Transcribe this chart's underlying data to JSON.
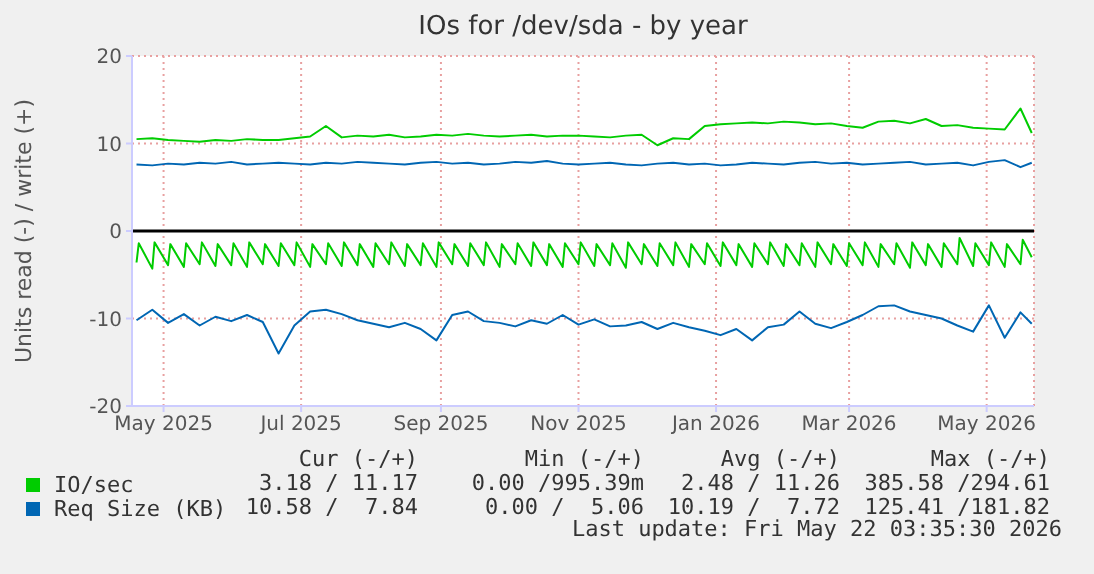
{
  "chart_data": {
    "type": "line",
    "title": "IOs for /dev/sda - by year",
    "ylabel": "Units read (-) / write (+)",
    "x": [
      "2025-04-19",
      "2025-04-26",
      "2025-05-03",
      "2025-05-10",
      "2025-05-17",
      "2025-05-24",
      "2025-05-31",
      "2025-06-07",
      "2025-06-14",
      "2025-06-21",
      "2025-06-28",
      "2025-07-05",
      "2025-07-12",
      "2025-07-19",
      "2025-07-26",
      "2025-08-02",
      "2025-08-09",
      "2025-08-16",
      "2025-08-23",
      "2025-08-30",
      "2025-09-06",
      "2025-09-13",
      "2025-09-20",
      "2025-09-27",
      "2025-10-04",
      "2025-10-11",
      "2025-10-18",
      "2025-10-25",
      "2025-11-01",
      "2025-11-08",
      "2025-11-15",
      "2025-11-22",
      "2025-11-29",
      "2025-12-06",
      "2025-12-13",
      "2025-12-20",
      "2025-12-27",
      "2026-01-03",
      "2026-01-10",
      "2026-01-17",
      "2026-01-24",
      "2026-01-31",
      "2026-02-07",
      "2026-02-14",
      "2026-02-21",
      "2026-02-28",
      "2026-03-07",
      "2026-03-14",
      "2026-03-21",
      "2026-03-28",
      "2026-04-04",
      "2026-04-11",
      "2026-04-18",
      "2026-04-25",
      "2026-05-02",
      "2026-05-09",
      "2026-05-16",
      "2026-05-21"
    ],
    "series": [
      {
        "name": "IO/sec",
        "color": "#00cc00",
        "values": [
          10.5,
          10.6,
          10.4,
          10.3,
          10.2,
          10.4,
          10.3,
          10.5,
          10.4,
          10.4,
          10.6,
          10.8,
          12.0,
          10.7,
          10.9,
          10.8,
          11.0,
          10.7,
          10.8,
          11.0,
          10.9,
          11.1,
          10.9,
          10.8,
          10.9,
          11.0,
          10.8,
          10.9,
          10.9,
          10.8,
          10.7,
          10.9,
          11.0,
          9.8,
          10.6,
          10.5,
          12.0,
          12.2,
          12.3,
          12.4,
          12.3,
          12.5,
          12.4,
          12.2,
          12.3,
          12.0,
          11.8,
          12.5,
          12.6,
          12.3,
          12.8,
          12.0,
          12.1,
          11.8,
          11.7,
          11.6,
          14.0,
          11.2
        ]
      },
      {
        "color": "#00cc00",
        "x": [
          "2025-04-19",
          "2025-04-20",
          "2025-04-26",
          "2025-04-27",
          "2025-05-03",
          "2025-05-04",
          "2025-05-10",
          "2025-05-11",
          "2025-05-17",
          "2025-05-18",
          "2025-05-24",
          "2025-05-25",
          "2025-05-31",
          "2025-06-01",
          "2025-06-07",
          "2025-06-08",
          "2025-06-14",
          "2025-06-15",
          "2025-06-21",
          "2025-06-22",
          "2025-06-28",
          "2025-06-29",
          "2025-07-05",
          "2025-07-06",
          "2025-07-12",
          "2025-07-13",
          "2025-07-19",
          "2025-07-20",
          "2025-07-26",
          "2025-07-27",
          "2025-08-02",
          "2025-08-03",
          "2025-08-09",
          "2025-08-10",
          "2025-08-16",
          "2025-08-17",
          "2025-08-23",
          "2025-08-24",
          "2025-08-30",
          "2025-08-31",
          "2025-09-06",
          "2025-09-07",
          "2025-09-13",
          "2025-09-14",
          "2025-09-20",
          "2025-09-21",
          "2025-09-27",
          "2025-09-28",
          "2025-10-04",
          "2025-10-05",
          "2025-10-11",
          "2025-10-12",
          "2025-10-18",
          "2025-10-19",
          "2025-10-25",
          "2025-10-26",
          "2025-11-01",
          "2025-11-02",
          "2025-11-08",
          "2025-11-09",
          "2025-11-15",
          "2025-11-16",
          "2025-11-22",
          "2025-11-23",
          "2025-11-29",
          "2025-11-30",
          "2025-12-06",
          "2025-12-07",
          "2025-12-13",
          "2025-12-14",
          "2025-12-20",
          "2025-12-21",
          "2025-12-27",
          "2025-12-28",
          "2026-01-03",
          "2026-01-04",
          "2026-01-10",
          "2026-01-11",
          "2026-01-17",
          "2026-01-18",
          "2026-01-24",
          "2026-01-25",
          "2026-01-31",
          "2026-02-01",
          "2026-02-07",
          "2026-02-08",
          "2026-02-14",
          "2026-02-15",
          "2026-02-21",
          "2026-02-22",
          "2026-02-28",
          "2026-03-01",
          "2026-03-07",
          "2026-03-08",
          "2026-03-14",
          "2026-03-15",
          "2026-03-21",
          "2026-03-22",
          "2026-03-28",
          "2026-03-29",
          "2026-04-04",
          "2026-04-05",
          "2026-04-11",
          "2026-04-12",
          "2026-04-18",
          "2026-04-19",
          "2026-04-25",
          "2026-04-26",
          "2026-05-02",
          "2026-05-03",
          "2026-05-09",
          "2026-05-10",
          "2026-05-16",
          "2026-05-17",
          "2026-05-21"
        ],
        "values": [
          -3.6,
          -1.4,
          -4.3,
          -1.3,
          -3.9,
          -1.5,
          -4.1,
          -1.4,
          -3.8,
          -1.3,
          -4.0,
          -1.5,
          -3.9,
          -1.4,
          -4.1,
          -1.3,
          -3.8,
          -1.5,
          -4.0,
          -1.4,
          -3.9,
          -1.3,
          -4.1,
          -1.5,
          -3.8,
          -1.4,
          -4.0,
          -1.3,
          -3.9,
          -1.5,
          -4.1,
          -1.4,
          -3.8,
          -1.3,
          -4.0,
          -1.5,
          -3.9,
          -1.4,
          -4.1,
          -1.3,
          -3.8,
          -1.5,
          -4.0,
          -1.4,
          -3.9,
          -1.3,
          -4.1,
          -1.5,
          -3.8,
          -1.4,
          -4.0,
          -1.3,
          -3.9,
          -1.5,
          -4.1,
          -1.4,
          -3.8,
          -1.3,
          -4.0,
          -1.5,
          -3.9,
          -1.4,
          -4.2,
          -1.3,
          -3.8,
          -1.5,
          -4.0,
          -1.4,
          -3.9,
          -1.3,
          -4.1,
          -1.5,
          -3.8,
          -1.4,
          -4.0,
          -1.3,
          -3.9,
          -1.5,
          -4.1,
          -1.4,
          -3.8,
          -1.3,
          -4.0,
          -1.5,
          -3.9,
          -1.4,
          -4.1,
          -1.3,
          -3.8,
          -1.5,
          -4.0,
          -1.4,
          -3.9,
          -1.3,
          -4.1,
          -1.5,
          -3.8,
          -1.4,
          -4.2,
          -1.3,
          -3.9,
          -1.5,
          -4.1,
          -1.4,
          -3.8,
          -0.8,
          -4.0,
          -1.4,
          -3.9,
          -1.3,
          -4.1,
          -1.5,
          -3.8,
          -1.0,
          -3.0
        ]
      },
      {
        "name": "Req Size (KB)",
        "color": "#0066b3",
        "values": [
          7.6,
          7.5,
          7.7,
          7.6,
          7.8,
          7.7,
          7.9,
          7.6,
          7.7,
          7.8,
          7.7,
          7.6,
          7.8,
          7.7,
          7.9,
          7.8,
          7.7,
          7.6,
          7.8,
          7.9,
          7.7,
          7.8,
          7.6,
          7.7,
          7.9,
          7.8,
          8.0,
          7.7,
          7.6,
          7.7,
          7.8,
          7.6,
          7.5,
          7.7,
          7.8,
          7.6,
          7.7,
          7.5,
          7.6,
          7.8,
          7.7,
          7.6,
          7.8,
          7.9,
          7.7,
          7.8,
          7.6,
          7.7,
          7.8,
          7.9,
          7.6,
          7.7,
          7.8,
          7.5,
          7.9,
          8.1,
          7.3,
          7.8
        ]
      },
      {
        "color": "#0066b3",
        "values": [
          -10.2,
          -9.0,
          -10.5,
          -9.5,
          -10.8,
          -9.8,
          -10.3,
          -9.6,
          -10.4,
          -14.0,
          -10.8,
          -9.2,
          -9.0,
          -9.5,
          -10.2,
          -10.6,
          -11.0,
          -10.5,
          -11.2,
          -12.5,
          -9.6,
          -9.2,
          -10.3,
          -10.5,
          -10.9,
          -10.2,
          -10.6,
          -9.6,
          -10.7,
          -10.1,
          -10.9,
          -10.8,
          -10.4,
          -11.2,
          -10.5,
          -11.0,
          -11.4,
          -11.9,
          -11.2,
          -12.5,
          -11.0,
          -10.7,
          -9.2,
          -10.6,
          -11.1,
          -10.4,
          -9.6,
          -8.6,
          -8.5,
          -9.2,
          -9.6,
          -10.0,
          -10.8,
          -11.5,
          -8.5,
          -12.2,
          -9.3,
          -10.6
        ]
      }
    ],
    "xlim": [
      "2025-04-17",
      "2026-05-22"
    ],
    "xticks": [
      {
        "value": "2025-05-01",
        "label": "May 2025"
      },
      {
        "value": "2025-07-01",
        "label": "Jul 2025"
      },
      {
        "value": "2025-09-01",
        "label": "Sep 2025"
      },
      {
        "value": "2025-11-01",
        "label": "Nov 2025"
      },
      {
        "value": "2026-01-01",
        "label": "Jan 2026"
      },
      {
        "value": "2026-03-01",
        "label": "Mar 2026"
      },
      {
        "value": "2026-05-01",
        "label": "May 2026"
      }
    ],
    "ylim": [
      -20,
      20
    ],
    "yticks": [
      -20,
      -10,
      0,
      10,
      20
    ],
    "ref_lines": [
      {
        "axis": "y",
        "value": 0,
        "color": "#000000"
      }
    ],
    "grid": true,
    "legend": "bottom",
    "marker": "none",
    "line_style": "solid",
    "annotations": [
      "Cur (-/+)",
      "Min (-/+)",
      "Avg (-/+)",
      "Max (-/+)",
      "3.18 / 11.17",
      "0.00 /995.39m",
      "2.48 / 11.26",
      "385.58 /294.61",
      "10.58 /  7.84",
      "0.00 /  5.06",
      "10.19 /  7.72",
      "125.41 /181.82",
      "Last update: Fri May 22 03:35:30 2026"
    ]
  }
}
